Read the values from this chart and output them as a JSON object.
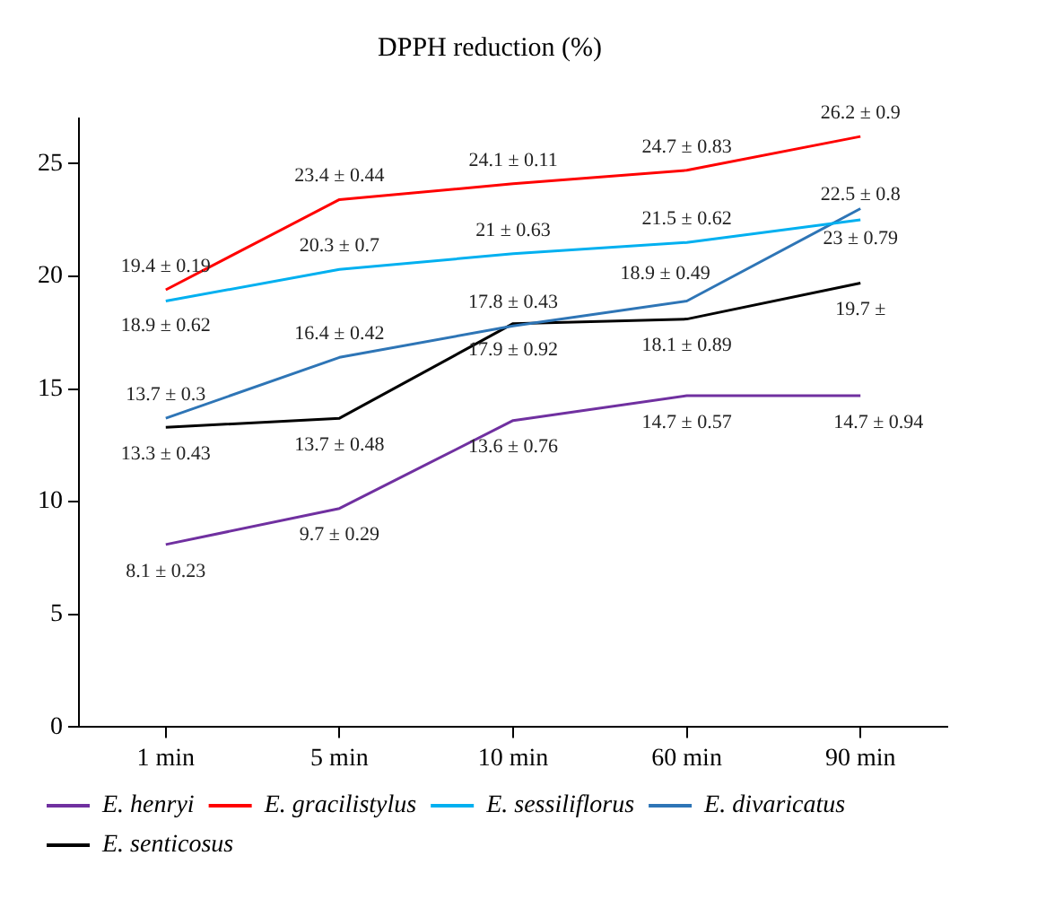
{
  "chart_data": {
    "type": "line",
    "title": "DPPH reduction (%)",
    "categories": [
      "1 min",
      "5 min",
      "10 min",
      "60 min",
      "90 min"
    ],
    "series": [
      {
        "name": "E. henryi",
        "color": "#7030a0",
        "values": [
          8.1,
          9.7,
          13.6,
          14.7,
          14.7
        ],
        "value_labels": [
          "8.1 ± 0.23",
          "9.7 ± 0.29",
          "13.6 ± 0.76",
          "14.7 ± 0.57",
          "14.7 ± 0.94"
        ]
      },
      {
        "name": "E. gracilistylus",
        "color": "#ff0000",
        "values": [
          19.4,
          23.4,
          24.1,
          24.7,
          26.2
        ],
        "value_labels": [
          "19.4 ± 0.19",
          "23.4 ± 0.44",
          "24.1 ± 0.11",
          "24.7 ± 0.83",
          "26.2 ± 0.9"
        ]
      },
      {
        "name": "E. sessiliflorus",
        "color": "#00b0f0",
        "values": [
          18.9,
          20.3,
          21,
          21.5,
          22.5
        ],
        "value_labels": [
          "18.9 ± 0.62",
          "20.3 ± 0.7",
          "21 ± 0.63",
          "21.5 ± 0.62",
          "22.5 ± 0.8"
        ]
      },
      {
        "name": "E. divaricatus",
        "color": "#2e75b6",
        "values": [
          13.7,
          16.4,
          17.8,
          18.9,
          23
        ],
        "value_labels": [
          "13.7 ± 0.3",
          "16.4 ± 0.42",
          "17.8 ± 0.43",
          "18.9 ± 0.49",
          "23 ± 0.79"
        ]
      },
      {
        "name": "E. senticosus",
        "color": "#000000",
        "values": [
          13.3,
          13.7,
          17.9,
          18.1,
          19.7
        ],
        "value_labels": [
          "13.3 ± 0.43",
          "13.7 ± 0.48",
          "17.9 ± 0.92",
          "18.1 ± 0.89",
          "19.7 ±"
        ]
      }
    ],
    "ylim": [
      0,
      27
    ],
    "yticks": [
      0,
      5,
      10,
      15,
      20,
      25
    ],
    "grid": false,
    "legend": "bottom",
    "marker": "none",
    "line_style": "solid"
  }
}
